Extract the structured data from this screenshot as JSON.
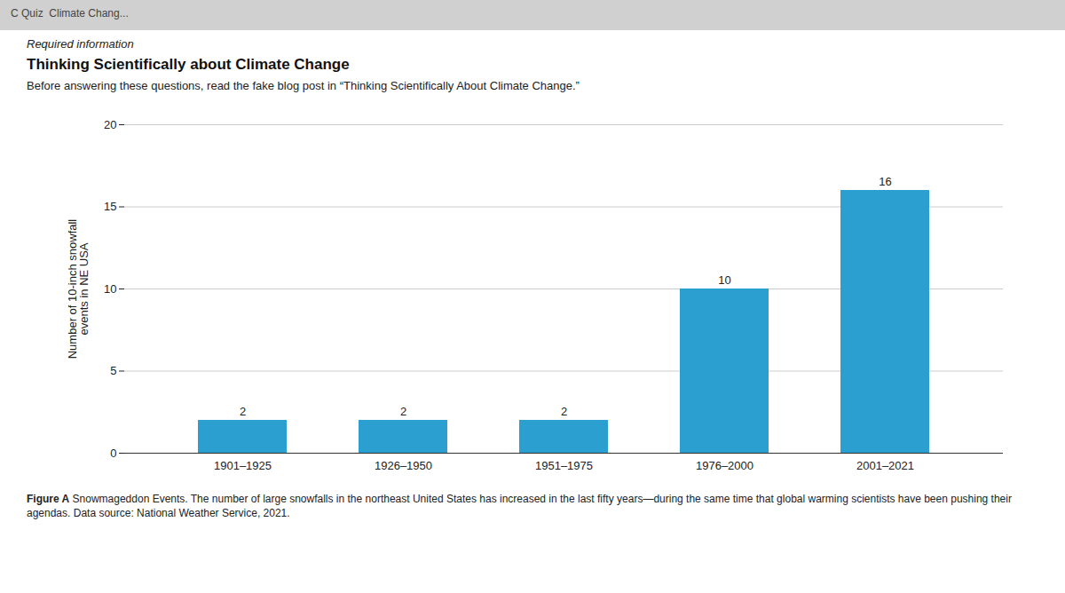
{
  "chart_data": {
    "type": "bar",
    "header": "C Quiz  Climate Chang...",
    "supertitle": "Required information",
    "title": "Thinking Scientifically about Climate Change",
    "subtitle": "Before answering these questions, read the fake blog post in “Thinking Scientifically About Climate Change.”",
    "categories": [
      "1901–1925",
      "1926–1950",
      "1951–1975",
      "1976–2000",
      "2001–2021"
    ],
    "values": [
      2,
      2,
      2,
      10,
      16
    ],
    "color": "#2B9FD0",
    "ylabel": "Number of 10-inch snowfall\nevents in NE USA",
    "ylim": [
      0,
      20
    ],
    "yticks": [
      0,
      5,
      10,
      15,
      20
    ],
    "grid": true,
    "data_labels": true,
    "caption_bold": "Figure A",
    "caption": "Snowmageddon Events. The number of large snowfalls in the northeast United States has increased in the last fifty years—during the same time that global warming scientists have been pushing their agendas. Data source: National Weather Service, 2021."
  }
}
